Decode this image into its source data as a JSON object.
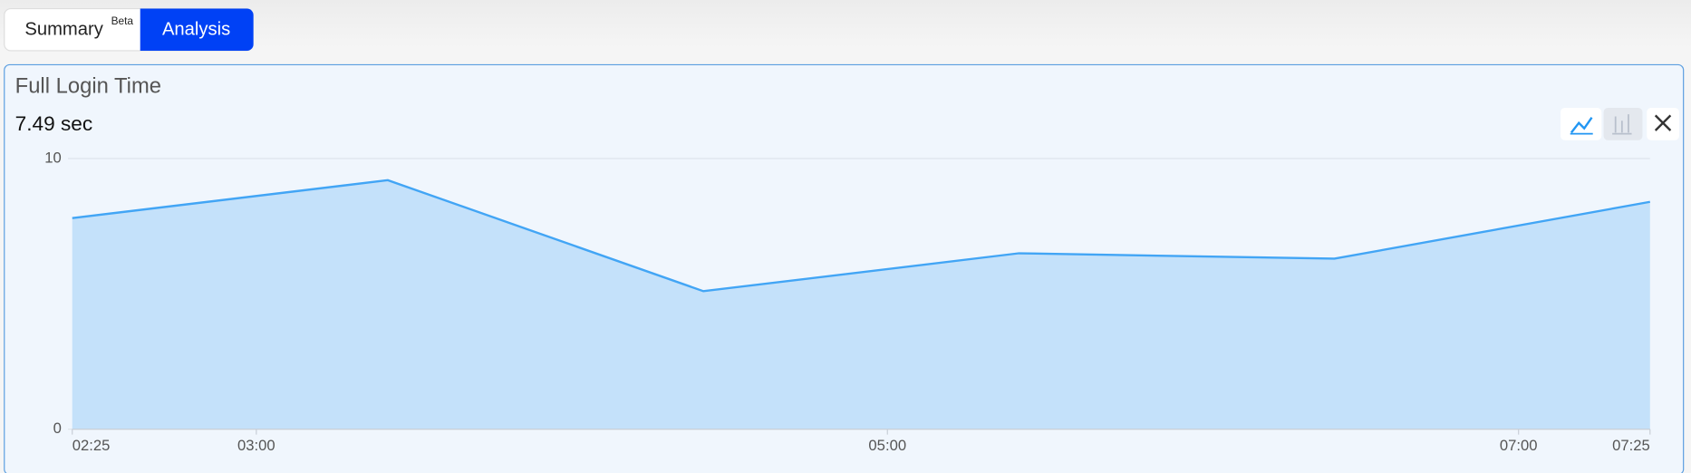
{
  "tabs": {
    "summary": "Summary",
    "badge": "Beta",
    "analysis": "Analysis"
  },
  "panel": {
    "title": "Full Login Time",
    "headline": "7.49 sec"
  },
  "chart_data": {
    "type": "area",
    "x": [
      "02:25",
      "03:25",
      "04:25",
      "05:25",
      "06:25",
      "07:25"
    ],
    "values": [
      7.8,
      9.2,
      5.1,
      6.5,
      6.3,
      8.4
    ],
    "color": "#42a5f5",
    "fill": "#c4e1fa",
    "xlim": [
      "02:25",
      "07:25"
    ],
    "xticks": [
      "02:25",
      "03:00",
      "05:00",
      "07:00",
      "07:25"
    ],
    "ylim": [
      0,
      10
    ],
    "yticks": [
      0,
      10
    ],
    "grid": true
  }
}
